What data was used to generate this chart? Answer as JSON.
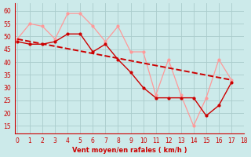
{
  "x": [
    0,
    1,
    2,
    3,
    4,
    5,
    6,
    7,
    8,
    9,
    10,
    11,
    12,
    13,
    14,
    15,
    16,
    17
  ],
  "moyen": [
    48,
    47,
    47,
    48,
    51,
    51,
    44,
    47,
    41,
    36,
    30,
    26,
    26,
    26,
    26,
    19,
    23,
    32
  ],
  "rafales": [
    49,
    55,
    54,
    49,
    59,
    59,
    54,
    48,
    54,
    44,
    44,
    27,
    41,
    27,
    15,
    26,
    41,
    33
  ],
  "trend_x": [
    0,
    17
  ],
  "trend_y": [
    49,
    33
  ],
  "bg_color": "#cceaea",
  "grid_color": "#aacccc",
  "main_color": "#cc0000",
  "light_color": "#ff9999",
  "xlabel": "Vent moyen/en rafales ( km/h )",
  "ylim": [
    12,
    63
  ],
  "xlim": [
    -0.2,
    18
  ],
  "yticks": [
    15,
    20,
    25,
    30,
    35,
    40,
    45,
    50,
    55,
    60
  ],
  "xticks": [
    0,
    1,
    2,
    3,
    4,
    5,
    6,
    7,
    8,
    9,
    10,
    11,
    12,
    13,
    14,
    15,
    16,
    17,
    18
  ]
}
